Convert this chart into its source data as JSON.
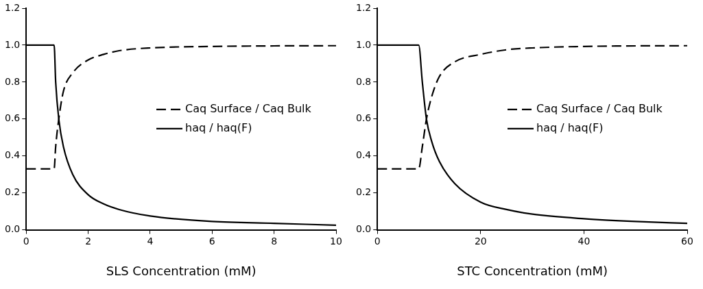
{
  "chart_data": [
    {
      "type": "line",
      "xlabel": "SLS Concentration (mM)",
      "xlim": [
        0,
        10
      ],
      "xticks": [
        0,
        2,
        4,
        6,
        8,
        10
      ],
      "ylim": [
        0,
        1.2
      ],
      "yticks": [
        {
          "value": 0,
          "label": "0.0"
        },
        {
          "value": 0.2,
          "label": "0.2"
        },
        {
          "value": 0.4,
          "label": "0.4"
        },
        {
          "value": 0.6,
          "label": "0.6"
        },
        {
          "value": 0.8,
          "label": "0.8"
        },
        {
          "value": 1,
          "label": "1.0"
        },
        {
          "value": 1.2,
          "label": "1.2"
        }
      ],
      "grid": false,
      "legend": "right",
      "marker": "none",
      "series": [
        {
          "name": "Caq Surface / Caq Bulk",
          "color": "#000000",
          "line_style": "dashed",
          "x": [
            0,
            0.9,
            0.95,
            1.05,
            1.2,
            1.5,
            2,
            2.5,
            3,
            4,
            6,
            8,
            10
          ],
          "values": [
            0.33,
            0.33,
            0.45,
            0.6,
            0.75,
            0.85,
            0.92,
            0.95,
            0.97,
            0.985,
            0.993,
            0.996,
            0.997
          ]
        },
        {
          "name": "haq / haq(F)",
          "color": "#000000",
          "line_style": "solid",
          "x": [
            0,
            0.9,
            0.95,
            1.05,
            1.2,
            1.5,
            2,
            2.5,
            3,
            4,
            6,
            8,
            10
          ],
          "values": [
            1,
            1,
            0.8,
            0.6,
            0.45,
            0.3,
            0.19,
            0.14,
            0.11,
            0.075,
            0.045,
            0.035,
            0.025
          ]
        }
      ]
    },
    {
      "type": "line",
      "xlabel": "STC Concentration (mM)",
      "xlim": [
        0,
        60
      ],
      "xticks": [
        0,
        20,
        40,
        60
      ],
      "ylim": [
        0,
        1.2
      ],
      "yticks": [
        {
          "value": 0,
          "label": "0.0"
        },
        {
          "value": 0.2,
          "label": "0.2"
        },
        {
          "value": 0.4,
          "label": "0.4"
        },
        {
          "value": 0.6,
          "label": "0.6"
        },
        {
          "value": 0.8,
          "label": "0.8"
        },
        {
          "value": 1,
          "label": "1.0"
        },
        {
          "value": 1.2,
          "label": "1.2"
        }
      ],
      "grid": false,
      "legend": "right",
      "marker": "none",
      "series": [
        {
          "name": "Caq Surface / Caq Bulk",
          "color": "#000000",
          "line_style": "dashed",
          "x": [
            0,
            8,
            8.7,
            9.5,
            10.5,
            12,
            15,
            20,
            25,
            30,
            40,
            50,
            60
          ],
          "values": [
            0.33,
            0.33,
            0.45,
            0.6,
            0.72,
            0.83,
            0.91,
            0.95,
            0.975,
            0.985,
            0.993,
            0.996,
            0.997
          ]
        },
        {
          "name": "haq / haq(F)",
          "color": "#000000",
          "line_style": "solid",
          "x": [
            0,
            8,
            8.7,
            9.5,
            10.5,
            12,
            15,
            20,
            25,
            30,
            40,
            50,
            60
          ],
          "values": [
            1,
            1,
            0.8,
            0.6,
            0.48,
            0.37,
            0.25,
            0.15,
            0.11,
            0.085,
            0.06,
            0.045,
            0.035
          ]
        }
      ]
    }
  ]
}
